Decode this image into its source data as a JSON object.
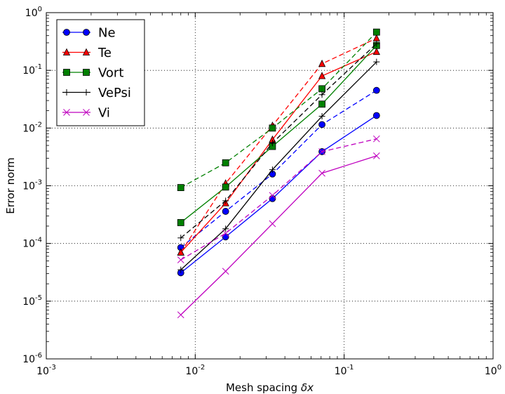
{
  "chart_data": {
    "type": "line",
    "xlabel_text": "Mesh spacing ",
    "xlabel_symbol": "δx",
    "ylabel": "Error norm",
    "x_scale": "log",
    "y_scale": "log",
    "xlim": [
      0.001,
      1
    ],
    "ylim": [
      1e-06,
      1
    ],
    "grid": true,
    "legend_position": "top-left",
    "x_ticks": [
      {
        "value": 0.001,
        "base": "10",
        "exp": "-3"
      },
      {
        "value": 0.01,
        "base": "10",
        "exp": "-2"
      },
      {
        "value": 0.1,
        "base": "10",
        "exp": "-1"
      },
      {
        "value": 1,
        "base": "10",
        "exp": "0"
      }
    ],
    "y_ticks": [
      {
        "value": 1e-06,
        "base": "10",
        "exp": "-6"
      },
      {
        "value": 1e-05,
        "base": "10",
        "exp": "-5"
      },
      {
        "value": 0.0001,
        "base": "10",
        "exp": "-4"
      },
      {
        "value": 0.001,
        "base": "10",
        "exp": "-3"
      },
      {
        "value": 0.01,
        "base": "10",
        "exp": "-2"
      },
      {
        "value": 0.1,
        "base": "10",
        "exp": "-1"
      },
      {
        "value": 1,
        "base": "10",
        "exp": "0"
      }
    ],
    "x": [
      0.008,
      0.016,
      0.033,
      0.071,
      0.165
    ],
    "series": [
      {
        "name": "Ne",
        "color": "#0000ff",
        "marker": "circle",
        "solid": [
          3.1e-05,
          0.00013,
          0.0006,
          0.0039,
          0.0165
        ],
        "dashed": [
          8.5e-05,
          0.00036,
          0.0016,
          0.0115,
          0.045
        ]
      },
      {
        "name": "Te",
        "color": "#ff0000",
        "marker": "triangle",
        "solid": [
          7e-05,
          0.0005,
          0.0063,
          0.08,
          0.21
        ],
        "dashed": [
          7e-05,
          0.0011,
          0.011,
          0.13,
          0.36
        ]
      },
      {
        "name": "Vort",
        "color": "#008000",
        "marker": "square",
        "solid": [
          0.00023,
          0.00095,
          0.0048,
          0.026,
          0.27
        ],
        "dashed": [
          0.00093,
          0.0025,
          0.01,
          0.048,
          0.46
        ]
      },
      {
        "name": "VePsi",
        "color": "#000000",
        "marker": "plus",
        "solid": [
          3.5e-05,
          0.00018,
          0.0019,
          0.016,
          0.14
        ],
        "dashed": [
          0.000125,
          0.00055,
          0.0055,
          0.038,
          0.29
        ]
      },
      {
        "name": "Vi",
        "color": "#bf00bf",
        "marker": "x",
        "solid": [
          5.8e-06,
          3.3e-05,
          0.00022,
          0.00165,
          0.0033
        ],
        "dashed": [
          5.2e-05,
          0.00015,
          0.00068,
          0.0039,
          0.0065
        ]
      }
    ]
  }
}
